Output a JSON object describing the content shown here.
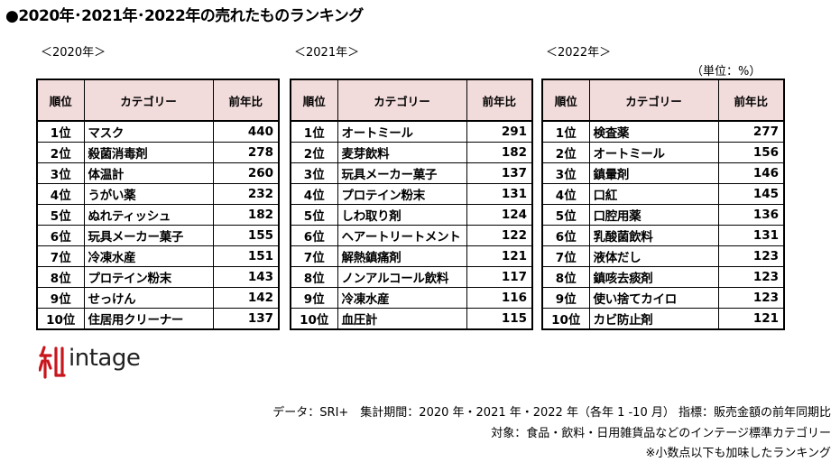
{
  "title": "●2020年･2021年･2022年の売れたものランキング",
  "unit_label": "（単位：%）",
  "headers": {
    "rank": "順位",
    "category": "カテゴリー",
    "ratio": "前年比"
  },
  "tables": [
    {
      "year_label": "＜2020年＞",
      "rows": [
        {
          "rank": "1位",
          "category": "マスク",
          "value": "440"
        },
        {
          "rank": "2位",
          "category": "殺菌消毒剤",
          "value": "278"
        },
        {
          "rank": "3位",
          "category": "体温計",
          "value": "260"
        },
        {
          "rank": "4位",
          "category": "うがい薬",
          "value": "232"
        },
        {
          "rank": "5位",
          "category": "ぬれティッシュ",
          "value": "182"
        },
        {
          "rank": "6位",
          "category": "玩具メーカー菓子",
          "value": "155"
        },
        {
          "rank": "7位",
          "category": "冷凍水産",
          "value": "151"
        },
        {
          "rank": "8位",
          "category": "プロテイン粉末",
          "value": "143"
        },
        {
          "rank": "9位",
          "category": "せっけん",
          "value": "142"
        },
        {
          "rank": "10位",
          "category": "住居用クリーナー",
          "value": "137"
        }
      ]
    },
    {
      "year_label": "＜2021年＞",
      "rows": [
        {
          "rank": "1位",
          "category": "オートミール",
          "value": "291"
        },
        {
          "rank": "2位",
          "category": "麦芽飲料",
          "value": "182"
        },
        {
          "rank": "3位",
          "category": "玩具メーカー菓子",
          "value": "137"
        },
        {
          "rank": "4位",
          "category": "プロテイン粉末",
          "value": "131"
        },
        {
          "rank": "5位",
          "category": "しわ取り剤",
          "value": "124"
        },
        {
          "rank": "6位",
          "category": "ヘアートリートメント",
          "value": "122"
        },
        {
          "rank": "7位",
          "category": "解熱鎮痛剤",
          "value": "121"
        },
        {
          "rank": "8位",
          "category": "ノンアルコール飲料",
          "value": "117"
        },
        {
          "rank": "9位",
          "category": "冷凍水産",
          "value": "116"
        },
        {
          "rank": "10位",
          "category": "血圧計",
          "value": "115"
        }
      ]
    },
    {
      "year_label": "＜2022年＞",
      "rows": [
        {
          "rank": "1位",
          "category": "検査薬",
          "value": "277"
        },
        {
          "rank": "2位",
          "category": "オートミール",
          "value": "156"
        },
        {
          "rank": "3位",
          "category": "鎮暈剤",
          "value": "146"
        },
        {
          "rank": "4位",
          "category": "口紅",
          "value": "145"
        },
        {
          "rank": "5位",
          "category": "口腔用薬",
          "value": "136"
        },
        {
          "rank": "6位",
          "category": "乳酸菌飲料",
          "value": "131"
        },
        {
          "rank": "7位",
          "category": "液体だし",
          "value": "123"
        },
        {
          "rank": "8位",
          "category": "鎮咳去痰剤",
          "value": "123"
        },
        {
          "rank": "9位",
          "category": "使い捨てカイロ",
          "value": "123"
        },
        {
          "rank": "10位",
          "category": "カビ防止剤",
          "value": "121"
        }
      ]
    }
  ],
  "logo": {
    "text": "intage",
    "mark_color": "#c8161d",
    "text_color": "#222222"
  },
  "footer": [
    "データ：SRI+　集計期間：2020 年・2021 年・2022 年（各年 1 -10 月） 指標：販売金額の前年同期比",
    "対象：食品・飲料・日用雑貨品などのインテージ標準カテゴリー",
    "※小数点以下も加味したランキング"
  ],
  "colors": {
    "header_bg": "#f2dcdb",
    "logo_red": "#c8161d"
  }
}
